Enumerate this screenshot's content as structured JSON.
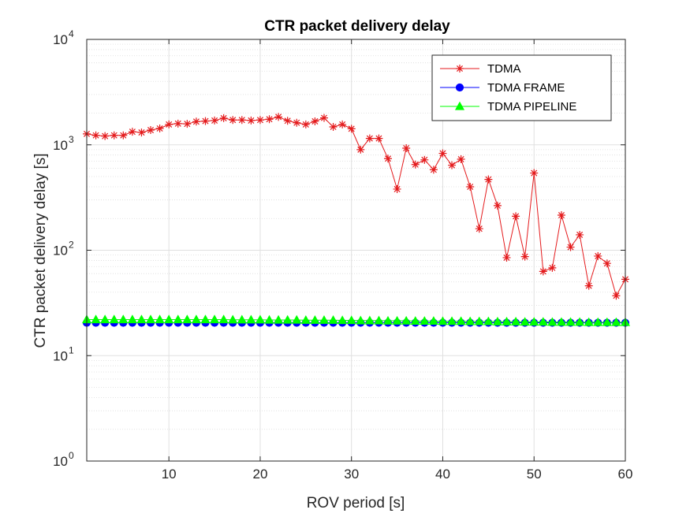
{
  "chart_data": {
    "type": "line",
    "title": "CTR packet delivery delay",
    "xlabel": "ROV period [s]",
    "ylabel": "CTR packet delivery delay [s]",
    "xlim": [
      1,
      60
    ],
    "ylim": [
      1,
      10000
    ],
    "yscale": "log",
    "grid": true,
    "minor_grid": true,
    "legend_position": "top-right",
    "x_ticks": [
      10,
      20,
      30,
      40,
      50,
      60
    ],
    "y_ticks": [
      {
        "base": "10",
        "exp": "0",
        "value": 1
      },
      {
        "base": "10",
        "exp": "1",
        "value": 10
      },
      {
        "base": "10",
        "exp": "2",
        "value": 100
      },
      {
        "base": "10",
        "exp": "3",
        "value": 1000
      },
      {
        "base": "10",
        "exp": "4",
        "value": 10000
      }
    ],
    "x": [
      1,
      2,
      3,
      4,
      5,
      6,
      7,
      8,
      9,
      10,
      11,
      12,
      13,
      14,
      15,
      16,
      17,
      18,
      19,
      20,
      21,
      22,
      23,
      24,
      25,
      26,
      27,
      28,
      29,
      30,
      31,
      32,
      33,
      34,
      35,
      36,
      37,
      38,
      39,
      40,
      41,
      42,
      43,
      44,
      45,
      46,
      47,
      48,
      49,
      50,
      51,
      52,
      53,
      54,
      55,
      56,
      57,
      58,
      59,
      60
    ],
    "series": [
      {
        "name": "TDMA",
        "color": "#e41a1c",
        "marker": "asterisk",
        "values": [
          1270,
          1230,
          1210,
          1230,
          1230,
          1330,
          1310,
          1380,
          1430,
          1560,
          1590,
          1580,
          1660,
          1680,
          1700,
          1790,
          1720,
          1720,
          1700,
          1720,
          1750,
          1840,
          1690,
          1620,
          1560,
          1670,
          1800,
          1480,
          1560,
          1420,
          900,
          1150,
          1150,
          740,
          380,
          930,
          650,
          720,
          580,
          830,
          640,
          730,
          400,
          160,
          470,
          265,
          85,
          210,
          87,
          540,
          63,
          68,
          215,
          107,
          140,
          46,
          88,
          75,
          37,
          53
        ]
      },
      {
        "name": "TDMA FRAME",
        "color": "#0000ff",
        "marker": "circle",
        "values": [
          20.5,
          20.5,
          20.5,
          20.5,
          20.5,
          20.5,
          20.5,
          20.5,
          20.5,
          20.5,
          20.5,
          20.5,
          20.5,
          20.5,
          20.5,
          20.5,
          20.5,
          20.5,
          20.5,
          20.5,
          20.5,
          20.5,
          20.5,
          20.5,
          20.5,
          20.5,
          20.5,
          20.5,
          20.5,
          20.5,
          20.5,
          20.5,
          20.5,
          20.5,
          20.5,
          20.5,
          20.5,
          20.5,
          20.5,
          20.5,
          20.5,
          20.5,
          20.5,
          20.5,
          20.5,
          20.5,
          20.5,
          20.5,
          20.5,
          20.5,
          20.5,
          20.5,
          20.5,
          20.5,
          20.5,
          20.5,
          20.5,
          20.5,
          20.5,
          20.5
        ]
      },
      {
        "name": "TDMA PIPELINE",
        "color": "#00ff00",
        "marker": "triangle",
        "values": [
          22.0,
          22.0,
          22.0,
          22.0,
          22.0,
          22.0,
          22.0,
          22.0,
          22.0,
          22.0,
          22.0,
          22.0,
          22.0,
          22.0,
          22.0,
          22.0,
          21.9,
          21.9,
          21.9,
          21.9,
          21.8,
          21.8,
          21.8,
          21.8,
          21.7,
          21.7,
          21.7,
          21.7,
          21.6,
          21.6,
          21.5,
          21.5,
          21.5,
          21.4,
          21.4,
          21.4,
          21.3,
          21.3,
          21.3,
          21.2,
          21.2,
          21.2,
          21.1,
          21.1,
          21.1,
          21.0,
          21.0,
          21.0,
          20.9,
          20.9,
          20.9,
          20.8,
          20.8,
          20.8,
          20.8,
          20.7,
          20.7,
          20.7,
          20.7,
          20.7
        ]
      }
    ]
  }
}
